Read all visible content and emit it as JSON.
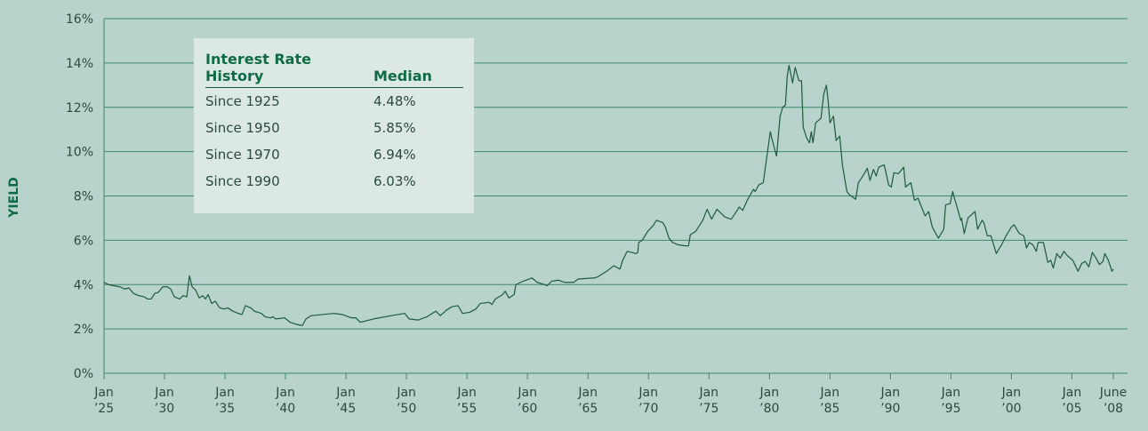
{
  "chart_data": {
    "type": "line",
    "y_label": "YIELD",
    "color": "#1f5a3e",
    "grid": true,
    "xlim": [
      1925,
      2009.6
    ],
    "xticks": [
      {
        "value": 1925,
        "label": "Jan\n’25"
      },
      {
        "value": 1930,
        "label": "Jan\n’30"
      },
      {
        "value": 1935,
        "label": "Jan\n’35"
      },
      {
        "value": 1940,
        "label": "Jan\n’40"
      },
      {
        "value": 1945,
        "label": "Jan\n’45"
      },
      {
        "value": 1950,
        "label": "Jan\n’50"
      },
      {
        "value": 1955,
        "label": "Jan\n’55"
      },
      {
        "value": 1960,
        "label": "Jan\n’60"
      },
      {
        "value": 1965,
        "label": "Jan\n’65"
      },
      {
        "value": 1970,
        "label": "Jan\n’70"
      },
      {
        "value": 1975,
        "label": "Jan\n’75"
      },
      {
        "value": 1980,
        "label": "Jan\n’80"
      },
      {
        "value": 1985,
        "label": "Jan\n’85"
      },
      {
        "value": 1990,
        "label": "Jan\n’90"
      },
      {
        "value": 1995,
        "label": "Jan\n’95"
      },
      {
        "value": 2000,
        "label": "Jan\n’00"
      },
      {
        "value": 2005,
        "label": "Jan\n’05"
      },
      {
        "value": 2008.42,
        "label": "June\n’08"
      }
    ],
    "ylim": [
      0,
      16
    ],
    "yticks": [
      {
        "value": 0,
        "label": "0%"
      },
      {
        "value": 2,
        "label": "2%"
      },
      {
        "value": 4,
        "label": "4%"
      },
      {
        "value": 6,
        "label": "6%"
      },
      {
        "value": 8,
        "label": "8%"
      },
      {
        "value": 10,
        "label": "10%"
      },
      {
        "value": 12,
        "label": "12%"
      },
      {
        "value": 14,
        "label": "14%"
      },
      {
        "value": 16,
        "label": "16%"
      }
    ],
    "x": [
      1925.0,
      1925.37,
      1925.81,
      1926.32,
      1926.69,
      1927.06,
      1927.43,
      1927.87,
      1928.31,
      1928.6,
      1928.9,
      1929.19,
      1929.49,
      1929.85,
      1930.22,
      1930.51,
      1930.81,
      1931.25,
      1931.54,
      1931.84,
      1932.06,
      1932.28,
      1932.57,
      1932.87,
      1933.16,
      1933.38,
      1933.6,
      1933.9,
      1934.19,
      1934.56,
      1934.93,
      1935.22,
      1935.66,
      1936.1,
      1936.4,
      1936.69,
      1937.13,
      1937.43,
      1937.72,
      1938.01,
      1938.31,
      1938.75,
      1938.97,
      1939.19,
      1939.93,
      1940.37,
      1940.96,
      1941.4,
      1941.69,
      1942.13,
      1943.97,
      1944.71,
      1945.44,
      1945.81,
      1946.18,
      1946.54,
      1947.28,
      1948.75,
      1949.85,
      1950.22,
      1950.96,
      1951.69,
      1952.43,
      1952.79,
      1953.31,
      1953.75,
      1954.26,
      1954.63,
      1955.22,
      1955.74,
      1956.1,
      1956.84,
      1957.06,
      1957.35,
      1957.94,
      1958.16,
      1958.46,
      1958.9,
      1959.04,
      1959.63,
      1960.37,
      1960.81,
      1961.4,
      1961.62,
      1961.99,
      1962.57,
      1963.09,
      1963.82,
      1964.19,
      1965.51,
      1965.81,
      1966.54,
      1967.13,
      1967.65,
      1967.87,
      1968.24,
      1968.97,
      1969.12,
      1969.19,
      1969.49,
      1969.93,
      1970.37,
      1970.66,
      1971.18,
      1971.4,
      1971.69,
      1971.99,
      1972.43,
      1973.01,
      1973.31,
      1973.46,
      1973.9,
      1974.49,
      1974.85,
      1975.22,
      1975.66,
      1976.32,
      1976.84,
      1977.28,
      1977.5,
      1977.79,
      1978.16,
      1978.68,
      1978.82,
      1979.12,
      1979.49,
      1980.07,
      1980.29,
      1980.59,
      1980.88,
      1981.1,
      1981.32,
      1981.47,
      1981.62,
      1981.91,
      1982.13,
      1982.43,
      1982.65,
      1982.79,
      1983.09,
      1983.31,
      1983.46,
      1983.6,
      1983.82,
      1984.26,
      1984.49,
      1984.71,
      1984.85,
      1985.0,
      1985.29,
      1985.51,
      1985.81,
      1986.03,
      1986.4,
      1986.62,
      1987.13,
      1987.35,
      1987.72,
      1988.09,
      1988.31,
      1988.6,
      1988.82,
      1989.04,
      1989.49,
      1989.85,
      1990.07,
      1990.29,
      1990.66,
      1991.1,
      1991.25,
      1991.69,
      1991.99,
      1992.28,
      1992.57,
      1992.87,
      1993.16,
      1993.46,
      1993.75,
      1993.97,
      1994.19,
      1994.41,
      1994.56,
      1994.93,
      1995.15,
      1995.29,
      1995.51,
      1995.81,
      1995.88,
      1996.1,
      1996.4,
      1996.99,
      1997.21,
      1997.57,
      1997.72,
      1998.01,
      1998.31,
      1998.75,
      1999.19,
      1999.56,
      2000.0,
      2000.22,
      2000.66,
      2001.03,
      2001.25,
      2001.47,
      2001.76,
      2002.06,
      2002.21,
      2002.65,
      2003.01,
      2003.24,
      2003.46,
      2003.75,
      2004.04,
      2004.34,
      2004.63,
      2005.07,
      2005.51,
      2005.81,
      2006.1,
      2006.4,
      2006.69,
      2006.99,
      2007.28,
      2007.57,
      2007.72,
      2008.01,
      2008.31,
      2008.42
    ],
    "values": [
      4.1,
      4.0,
      3.95,
      3.9,
      3.8,
      3.85,
      3.6,
      3.5,
      3.45,
      3.35,
      3.35,
      3.6,
      3.65,
      3.9,
      3.9,
      3.8,
      3.45,
      3.35,
      3.5,
      3.45,
      4.4,
      3.9,
      3.75,
      3.4,
      3.5,
      3.35,
      3.55,
      3.15,
      3.25,
      2.95,
      2.9,
      2.95,
      2.8,
      2.7,
      2.65,
      3.05,
      2.95,
      2.8,
      2.75,
      2.7,
      2.55,
      2.5,
      2.55,
      2.45,
      2.5,
      2.3,
      2.2,
      2.15,
      2.45,
      2.6,
      2.7,
      2.65,
      2.5,
      2.5,
      2.3,
      2.35,
      2.45,
      2.6,
      2.7,
      2.45,
      2.4,
      2.55,
      2.8,
      2.6,
      2.85,
      3.0,
      3.05,
      2.7,
      2.75,
      2.9,
      3.15,
      3.2,
      3.1,
      3.35,
      3.55,
      3.7,
      3.4,
      3.55,
      4.0,
      4.15,
      4.3,
      4.1,
      4.0,
      3.95,
      4.15,
      4.2,
      4.1,
      4.1,
      4.25,
      4.3,
      4.35,
      4.6,
      4.85,
      4.7,
      5.1,
      5.5,
      5.4,
      5.45,
      5.9,
      6.0,
      6.4,
      6.65,
      6.9,
      6.8,
      6.6,
      6.1,
      5.9,
      5.8,
      5.75,
      5.75,
      6.25,
      6.4,
      6.9,
      7.4,
      6.95,
      7.4,
      7.05,
      6.95,
      7.3,
      7.5,
      7.35,
      7.8,
      8.3,
      8.2,
      8.5,
      8.6,
      10.9,
      10.4,
      9.8,
      11.6,
      12.0,
      12.1,
      13.4,
      13.9,
      13.1,
      13.8,
      13.2,
      13.2,
      11.1,
      10.6,
      10.4,
      10.9,
      10.4,
      11.3,
      11.5,
      12.6,
      13.0,
      12.3,
      11.3,
      11.6,
      10.5,
      10.7,
      9.4,
      8.2,
      8.05,
      7.85,
      8.6,
      8.9,
      9.25,
      8.7,
      9.2,
      8.9,
      9.3,
      9.4,
      8.5,
      8.4,
      9.05,
      9.0,
      9.3,
      8.4,
      8.6,
      7.8,
      7.9,
      7.5,
      7.1,
      7.3,
      6.6,
      6.3,
      6.1,
      6.3,
      6.5,
      7.6,
      7.65,
      8.2,
      7.9,
      7.5,
      6.9,
      7.0,
      6.3,
      7.0,
      7.3,
      6.5,
      6.9,
      6.8,
      6.2,
      6.2,
      5.4,
      5.8,
      6.2,
      6.6,
      6.7,
      6.3,
      6.2,
      5.65,
      5.9,
      5.8,
      5.5,
      5.9,
      5.9,
      5.0,
      5.1,
      4.75,
      5.4,
      5.2,
      5.5,
      5.3,
      5.1,
      4.6,
      4.95,
      5.05,
      4.8,
      5.45,
      5.2,
      4.9,
      5.05,
      5.4,
      5.1,
      4.6,
      4.7
    ],
    "table": {
      "header": [
        "Interest Rate History",
        "Median"
      ],
      "rows": [
        [
          "Since 1925",
          "4.48%"
        ],
        [
          "Since 1950",
          "5.85%"
        ],
        [
          "Since 1970",
          "6.94%"
        ],
        [
          "Since 1990",
          "6.03%"
        ]
      ]
    }
  }
}
